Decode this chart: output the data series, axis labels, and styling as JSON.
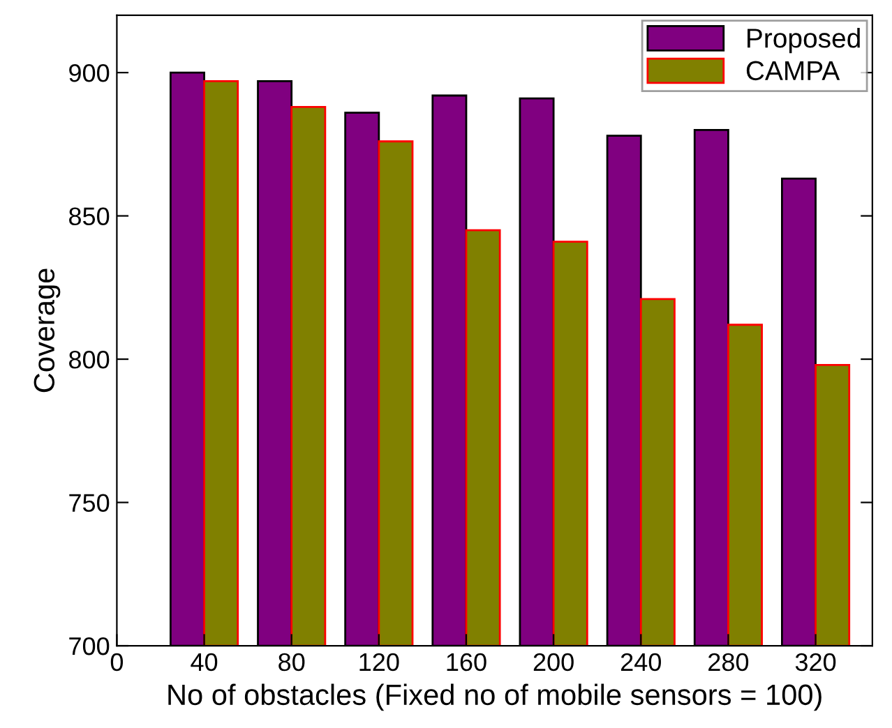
{
  "chart_data": {
    "type": "bar",
    "xlabel": "No of obstacles (Fixed no of mobile sensors = 100)",
    "ylabel": "Coverage",
    "x": [
      40,
      80,
      120,
      160,
      200,
      240,
      280,
      320
    ],
    "series": [
      {
        "name": "Proposed",
        "color": "#800080",
        "values": [
          900,
          897,
          886,
          892,
          891,
          878,
          880,
          863
        ]
      },
      {
        "name": "CAMPA",
        "color": "#808000",
        "values": [
          897,
          888,
          876,
          845,
          841,
          821,
          812,
          798
        ]
      }
    ],
    "xlim": [
      0,
      346
    ],
    "xticks": [
      0,
      40,
      80,
      120,
      160,
      200,
      240,
      280,
      320
    ],
    "ylim": [
      700,
      920
    ],
    "yticks": [
      700,
      750,
      800,
      850,
      900
    ],
    "grid": false,
    "legend": "top right"
  }
}
